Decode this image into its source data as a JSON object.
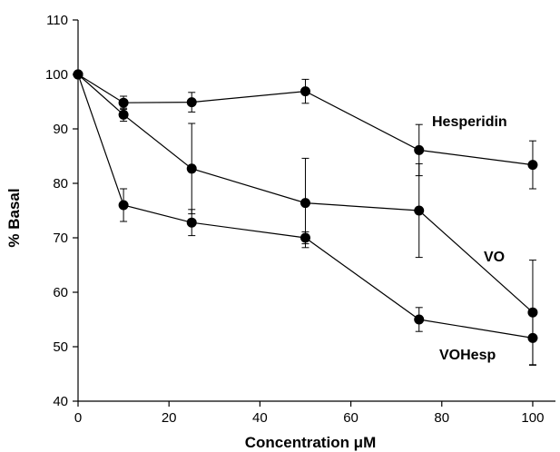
{
  "chart_data": {
    "type": "line",
    "xlabel": "Concentration μM",
    "ylabel": "% Basal",
    "xlim": [
      0,
      105
    ],
    "ylim": [
      40,
      110
    ],
    "xticks": [
      0,
      20,
      40,
      60,
      80,
      100
    ],
    "yticks": [
      40,
      50,
      60,
      70,
      80,
      90,
      100,
      110
    ],
    "grid": false,
    "series": [
      {
        "name": "Hesperidin",
        "x": [
          0,
          10,
          25,
          50,
          75,
          100
        ],
        "values": [
          100,
          94.8,
          94.9,
          96.9,
          86.1,
          83.4
        ],
        "error": [
          0,
          1.2,
          1.8,
          2.2,
          4.7,
          4.4
        ]
      },
      {
        "name": "VO",
        "x": [
          0,
          10,
          25,
          50,
          75,
          100
        ],
        "values": [
          100,
          92.6,
          82.7,
          76.4,
          75.0,
          56.3
        ],
        "error": [
          0,
          1.2,
          8.3,
          8.2,
          8.6,
          9.6
        ]
      },
      {
        "name": "VOHesp",
        "x": [
          0,
          10,
          25,
          50,
          75,
          100
        ],
        "values": [
          100,
          76.0,
          72.8,
          70.0,
          55.0,
          51.6
        ],
        "error": [
          0,
          3.0,
          2.4,
          1.1,
          2.2,
          5.0
        ]
      }
    ]
  }
}
